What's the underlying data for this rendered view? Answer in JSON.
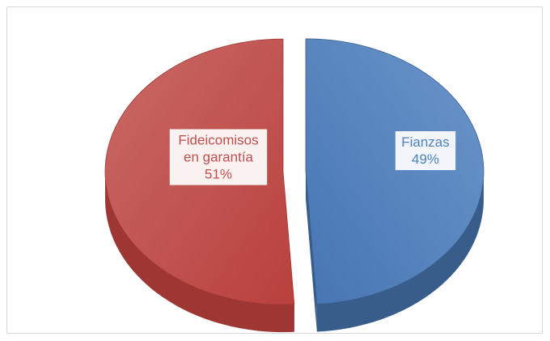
{
  "chart_data": {
    "type": "pie",
    "variant": "3d-exploded",
    "title": "",
    "slices": [
      {
        "name": "Fideicomisos en garantía",
        "label_lines": [
          "Fideicomisos",
          "en garantía"
        ],
        "percent_label": "51%",
        "value": 51,
        "color": "#c0504d",
        "side_color": "#9e3633"
      },
      {
        "name": "Fianzas",
        "label_lines": [
          "Fianzas"
        ],
        "percent_label": "49%",
        "value": 49,
        "color": "#4f81bd",
        "side_color": "#385d8a"
      }
    ],
    "legend": "none",
    "grid": false
  }
}
